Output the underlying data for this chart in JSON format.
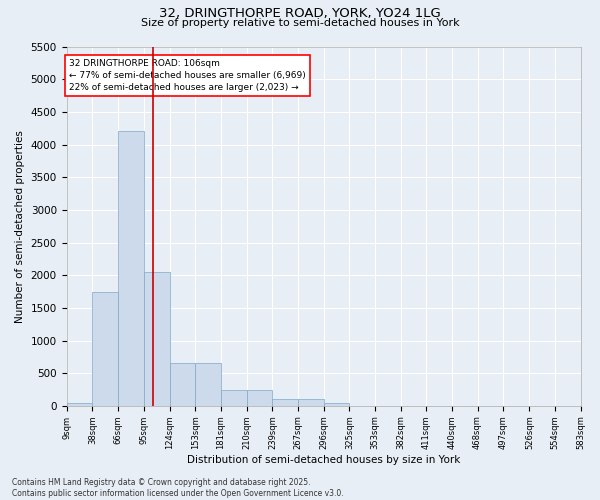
{
  "title_line1": "32, DRINGTHORPE ROAD, YORK, YO24 1LG",
  "title_line2": "Size of property relative to semi-detached houses in York",
  "xlabel": "Distribution of semi-detached houses by size in York",
  "ylabel": "Number of semi-detached properties",
  "footer_line1": "Contains HM Land Registry data © Crown copyright and database right 2025.",
  "footer_line2": "Contains public sector information licensed under the Open Government Licence v3.0.",
  "annotation_title": "32 DRINGTHORPE ROAD: 106sqm",
  "annotation_line1": "← 77% of semi-detached houses are smaller (6,969)",
  "annotation_line2": "22% of semi-detached houses are larger (2,023) →",
  "subject_size": 106,
  "bin_edges": [
    9,
    38,
    66,
    95,
    124,
    153,
    181,
    210,
    239,
    267,
    296,
    325,
    353,
    382,
    411,
    440,
    468,
    497,
    526,
    554,
    583
  ],
  "bar_values": [
    50,
    1750,
    4200,
    2050,
    650,
    650,
    250,
    250,
    100,
    100,
    50,
    0,
    0,
    0,
    0,
    0,
    0,
    0,
    0,
    0
  ],
  "bar_color": "#ccdaeb",
  "bar_edge_color": "#7fa8c8",
  "red_line_color": "#cc0000",
  "background_color": "#e8eef5",
  "grid_color": "#ffffff",
  "ylim": [
    0,
    5500
  ],
  "yticks": [
    0,
    500,
    1000,
    1500,
    2000,
    2500,
    3000,
    3500,
    4000,
    4500,
    5000,
    5500
  ],
  "title_fontsize": 9.5,
  "subtitle_fontsize": 8,
  "ylabel_fontsize": 7.5,
  "xlabel_fontsize": 7.5,
  "ytick_fontsize": 7.5,
  "xtick_fontsize": 6,
  "annotation_fontsize": 6.5,
  "footer_fontsize": 5.5
}
